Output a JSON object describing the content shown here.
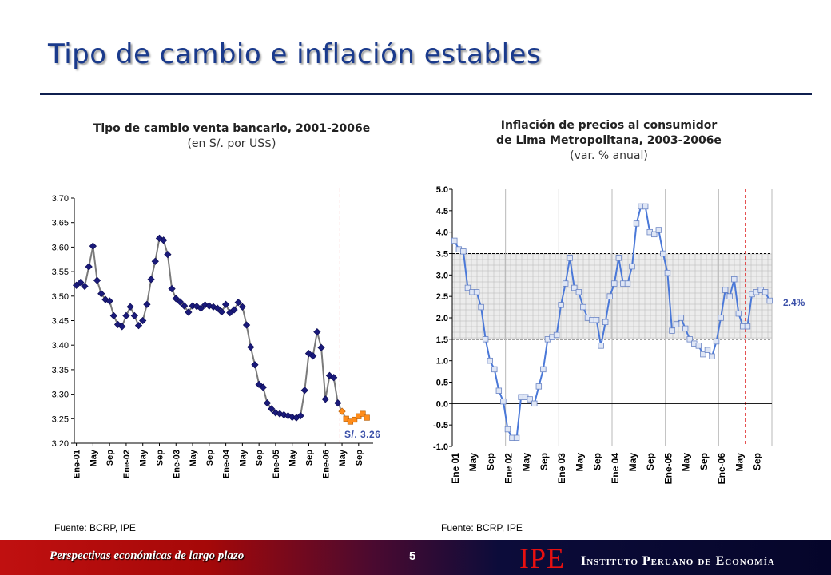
{
  "slide": {
    "title": "Tipo de cambio e inflación estables",
    "footer_left": "Perspectivas económicas de largo plazo",
    "page_number": "5",
    "logo": "IPE",
    "logo_text": "Instituto Peruano de Economía"
  },
  "chart_data": [
    {
      "type": "line",
      "title": "Tipo de cambio venta bancario, 2001-2006e",
      "subtitle": "(en S/. por US$)",
      "source": "Fuente: BCRP, IPE",
      "ylim": [
        3.2,
        3.7
      ],
      "yticks": [
        "3.70",
        "3.65",
        "3.60",
        "3.55",
        "3.50",
        "3.45",
        "3.40",
        "3.35",
        "3.30",
        "3.25",
        "3.20"
      ],
      "xticks": [
        "Ene-01",
        "May",
        "Sep",
        "Ene-02",
        "May",
        "Sep",
        "Ene-03",
        "May",
        "Sep",
        "Ene-04",
        "May",
        "Sep",
        "Ene-05",
        "May",
        "Sep",
        "Ene-06",
        "May",
        "Sep"
      ],
      "annotation": "S/. 3.26",
      "series": [
        {
          "values": [
            3.522,
            3.528,
            3.52,
            3.56,
            3.602,
            3.532,
            3.505,
            3.493,
            3.49,
            3.46,
            3.442,
            3.438,
            3.46,
            3.478,
            3.46,
            3.44,
            3.45,
            3.483,
            3.534,
            3.571,
            3.618,
            3.614,
            3.585,
            3.515,
            3.495,
            3.488,
            3.48,
            3.467,
            3.48,
            3.479,
            3.475,
            3.482,
            3.48,
            3.478,
            3.475,
            3.468,
            3.483,
            3.466,
            3.472,
            3.487,
            3.478,
            3.441,
            3.396,
            3.36,
            3.32,
            3.314,
            3.282,
            3.27,
            3.262,
            3.26,
            3.258,
            3.256,
            3.253,
            3.252,
            3.256,
            3.308,
            3.383,
            3.378,
            3.427,
            3.395,
            3.29,
            3.338,
            3.334,
            3.282
          ]
        },
        {
          "values": [
            3.265,
            3.25,
            3.244,
            3.248,
            3.255,
            3.26,
            3.252
          ]
        }
      ]
    },
    {
      "type": "line",
      "title": "Inflación de precios al consumidor",
      "title2": "de Lima Metropolitana, 2003-2006e",
      "subtitle": "(var. % anual)",
      "source": "Fuente: BCRP, IPE",
      "ylim": [
        -1.0,
        5.0
      ],
      "yticks": [
        "5.0",
        "4.5",
        "4.0",
        "3.5",
        "3.0",
        "2.5",
        "2.0",
        "1.5",
        "1.0",
        "0.5",
        "0.0",
        "-0.5",
        "-1.0"
      ],
      "xticks": [
        "Ene 01",
        "May",
        "Sep",
        "Ene 02",
        "May",
        "Sep",
        "Ene 03",
        "May",
        "Sep",
        "Ene 04",
        "May",
        "Sep",
        "Ene-05",
        "May",
        "Sep",
        "Ene-06",
        "May",
        "Sep"
      ],
      "target_band": [
        1.5,
        3.5
      ],
      "annotation": "2.4%",
      "series": [
        {
          "values": [
            3.8,
            3.6,
            3.55,
            2.7,
            2.6,
            2.6,
            2.25,
            1.5,
            1.0,
            0.8,
            0.3,
            0.05,
            -0.6,
            -0.8,
            -0.8,
            0.15,
            0.15,
            0.1,
            0.0,
            0.4,
            0.8,
            1.5,
            1.55,
            1.6,
            2.3,
            2.8,
            3.4,
            2.7,
            2.6,
            2.25,
            2.0,
            1.95,
            1.95,
            1.35,
            1.9,
            2.5,
            2.8,
            3.4,
            2.8,
            2.8,
            3.2,
            4.2,
            4.6,
            4.6,
            4.0,
            3.95,
            4.05,
            3.5,
            3.05,
            1.7,
            1.85,
            2.0,
            1.75,
            1.5,
            1.4,
            1.35,
            1.15,
            1.25,
            1.1,
            1.45,
            2.0,
            2.65,
            2.5,
            2.9,
            2.1,
            1.8,
            1.8,
            2.55,
            2.6,
            2.65,
            2.6,
            2.4
          ]
        }
      ]
    }
  ]
}
